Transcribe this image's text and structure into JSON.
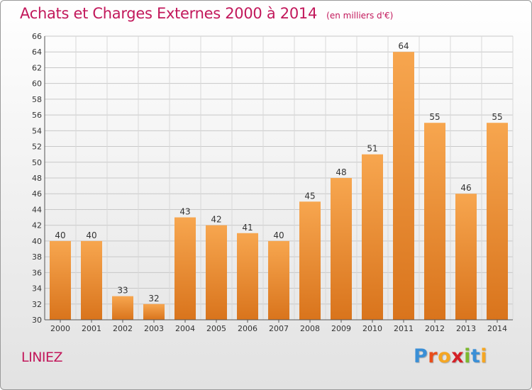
{
  "header": {
    "title": "Achats et Charges Externes 2000 à 2014",
    "unit": "(en milliers d'€)"
  },
  "footer": {
    "commune": "LINIEZ",
    "brand_letters": [
      {
        "ch": "P",
        "color": "#3a8fd6"
      },
      {
        "ch": "r",
        "color": "#e94e1b"
      },
      {
        "ch": "o",
        "color": "#f5a623"
      },
      {
        "ch": "x",
        "color": "#d42027"
      },
      {
        "ch": "i",
        "color": "#7cb82f"
      },
      {
        "ch": "t",
        "color": "#3a8fd6"
      },
      {
        "ch": "i",
        "color": "#f5a623"
      }
    ]
  },
  "colors": {
    "bar_top": "#f7a64f",
    "bar_bottom": "#d9741c",
    "accent": "#c2185b"
  },
  "chart_data": {
    "type": "bar",
    "categories": [
      "2000",
      "2001",
      "2002",
      "2003",
      "2004",
      "2005",
      "2006",
      "2007",
      "2008",
      "2009",
      "2010",
      "2011",
      "2012",
      "2013",
      "2014"
    ],
    "values": [
      40,
      40,
      33,
      32,
      43,
      42,
      41,
      40,
      45,
      48,
      51,
      64,
      55,
      46,
      55
    ],
    "ylim": [
      30,
      66
    ],
    "yticks": [
      30,
      32,
      34,
      36,
      38,
      40,
      42,
      44,
      46,
      48,
      50,
      52,
      54,
      56,
      58,
      60,
      62,
      64,
      66
    ],
    "grid": true
  }
}
